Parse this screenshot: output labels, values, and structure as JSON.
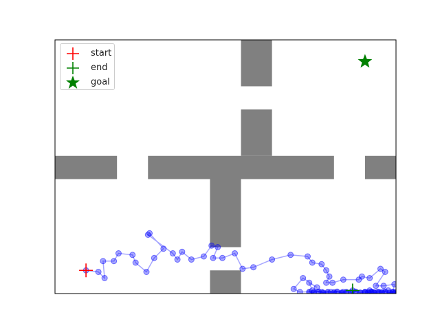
{
  "chart_data": {
    "type": "scatter",
    "xlim": [
      0,
      11
    ],
    "ylim": [
      0,
      8.2
    ],
    "grid": false,
    "legend_position": "top-left",
    "colors": {
      "obstacle": "#808080",
      "path": "#0000ff",
      "start": "#ff0000",
      "end": "#008000",
      "goal": "#008000",
      "axes": "#000000"
    },
    "obstacles": [
      {
        "x0": 0,
        "y0": 3.7,
        "x1": 2,
        "y1": 4.45
      },
      {
        "x0": 3,
        "y0": 3.7,
        "x1": 9,
        "y1": 4.45
      },
      {
        "x0": 10,
        "y0": 3.7,
        "x1": 11,
        "y1": 4.45
      },
      {
        "x0": 6,
        "y0": 6.7,
        "x1": 7,
        "y1": 8.2
      },
      {
        "x0": 6,
        "y0": 4.45,
        "x1": 7,
        "y1": 5.95
      },
      {
        "x0": 5,
        "y0": 1.5,
        "x1": 6,
        "y1": 3.7
      },
      {
        "x0": 5,
        "y0": 0,
        "x1": 6,
        "y1": 0.75
      }
    ],
    "series": [
      {
        "name": "start",
        "marker": "plus",
        "points": [
          [
            1.0,
            0.75
          ]
        ]
      },
      {
        "name": "end",
        "marker": "plus",
        "points": [
          [
            9.6,
            0.1
          ]
        ]
      },
      {
        "name": "goal",
        "marker": "star",
        "points": [
          [
            10.0,
            7.5
          ]
        ]
      },
      {
        "name": "",
        "marker": "circle",
        "points": [
          [
            1.0,
            0.75
          ],
          [
            1.4,
            0.7
          ],
          [
            1.6,
            0.5
          ],
          [
            1.55,
            1.05
          ],
          [
            1.9,
            1.05
          ],
          [
            2.05,
            1.3
          ],
          [
            2.5,
            1.25
          ],
          [
            2.6,
            1.0
          ],
          [
            2.95,
            0.7
          ],
          [
            3.2,
            1.15
          ],
          [
            3.5,
            1.45
          ],
          [
            3.05,
            1.95
          ],
          [
            3.0,
            1.9
          ],
          [
            3.8,
            1.3
          ],
          [
            3.95,
            1.1
          ],
          [
            4.1,
            1.35
          ],
          [
            4.4,
            1.1
          ],
          [
            4.8,
            1.2
          ],
          [
            5.05,
            1.55
          ],
          [
            5.25,
            1.5
          ],
          [
            5.1,
            1.15
          ],
          [
            5.4,
            1.15
          ],
          [
            5.8,
            1.3
          ],
          [
            6.05,
            0.8
          ],
          [
            6.4,
            0.85
          ],
          [
            7.0,
            1.1
          ],
          [
            7.6,
            1.25
          ],
          [
            8.15,
            1.2
          ],
          [
            8.3,
            1.0
          ],
          [
            8.6,
            0.95
          ],
          [
            8.75,
            0.75
          ],
          [
            8.85,
            0.55
          ],
          [
            8.75,
            0.35
          ],
          [
            8.95,
            0.35
          ],
          [
            9.3,
            0.45
          ],
          [
            9.8,
            0.45
          ],
          [
            9.9,
            0.55
          ],
          [
            10.15,
            0.5
          ],
          [
            10.5,
            0.8
          ],
          [
            10.65,
            0.7
          ],
          [
            10.35,
            0.25
          ],
          [
            10.6,
            0.25
          ],
          [
            10.95,
            0.3
          ],
          [
            10.9,
            0.05
          ],
          [
            10.4,
            0.05
          ],
          [
            10.0,
            0.05
          ],
          [
            9.6,
            0.1
          ],
          [
            9.3,
            0.05
          ],
          [
            8.9,
            0.05
          ],
          [
            8.6,
            0.05
          ],
          [
            8.3,
            0.1
          ],
          [
            8.2,
            0.35
          ],
          [
            8.45,
            0.2
          ],
          [
            8.0,
            0.5
          ],
          [
            7.7,
            0.15
          ],
          [
            7.9,
            0.05
          ],
          [
            10.15,
            0.1
          ],
          [
            10.75,
            0.1
          ],
          [
            10.25,
            0.05
          ]
        ]
      },
      {
        "name": "",
        "marker": "circle",
        "points": [
          [
            8.2,
            0.05
          ],
          [
            8.35,
            0.04
          ],
          [
            8.5,
            0.06
          ],
          [
            8.65,
            0.03
          ],
          [
            8.8,
            0.05
          ],
          [
            9.0,
            0.04
          ],
          [
            9.1,
            0.06
          ],
          [
            9.25,
            0.03
          ],
          [
            9.4,
            0.05
          ],
          [
            9.55,
            0.04
          ],
          [
            9.7,
            0.06
          ],
          [
            9.85,
            0.03
          ],
          [
            10.0,
            0.05
          ],
          [
            10.1,
            0.04
          ],
          [
            10.2,
            0.06
          ],
          [
            10.3,
            0.03
          ],
          [
            10.45,
            0.05
          ],
          [
            10.55,
            0.04
          ],
          [
            10.65,
            0.06
          ],
          [
            10.8,
            0.03
          ],
          [
            10.9,
            0.05
          ],
          [
            10.98,
            0.04
          ]
        ]
      }
    ],
    "legend": [
      {
        "label": "start",
        "marker": "plus",
        "color": "#ff0000"
      },
      {
        "label": "end",
        "marker": "plus",
        "color": "#008000"
      },
      {
        "label": "goal",
        "marker": "star",
        "color": "#008000"
      }
    ]
  }
}
